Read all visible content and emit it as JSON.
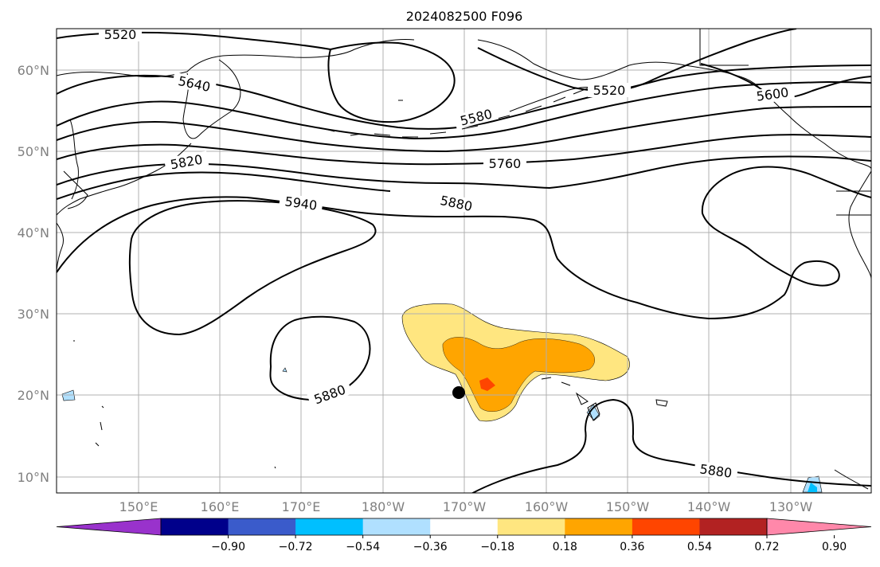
{
  "title": "2024082500 F096",
  "map": {
    "lon_range": [
      "140°E",
      "120°W"
    ],
    "lat_range": [
      "8°N",
      "65°N"
    ],
    "lat_ticks": [
      "10°N",
      "20°N",
      "30°N",
      "40°N",
      "50°N",
      "60°N"
    ],
    "lon_ticks": [
      "150°E",
      "160°E",
      "170°E",
      "180°W",
      "170°W",
      "160°W",
      "150°W",
      "140°W",
      "130°W"
    ],
    "gridlines": true,
    "contour_labels": [
      "5520",
      "5640",
      "5580",
      "5520",
      "5600",
      "5820",
      "5760",
      "5940",
      "5880",
      "5880",
      "5880"
    ],
    "marker": {
      "lon": "-171",
      "lat": "20.2",
      "type": "filled-circle"
    }
  },
  "colorbar": {
    "colors": [
      "#9932CC",
      "#00008B",
      "#3A5BCB",
      "#00BFFF",
      "#B0E0FF",
      "#FFFFFF",
      "#FFE680",
      "#FFA500",
      "#FF4500",
      "#B22222",
      "#FF88AA"
    ],
    "tick_labels": [
      "−0.90",
      "−0.72",
      "−0.54",
      "−0.36",
      "−0.18",
      "0.18",
      "0.36",
      "0.54",
      "0.72",
      "0.90"
    ],
    "extend": "both"
  }
}
